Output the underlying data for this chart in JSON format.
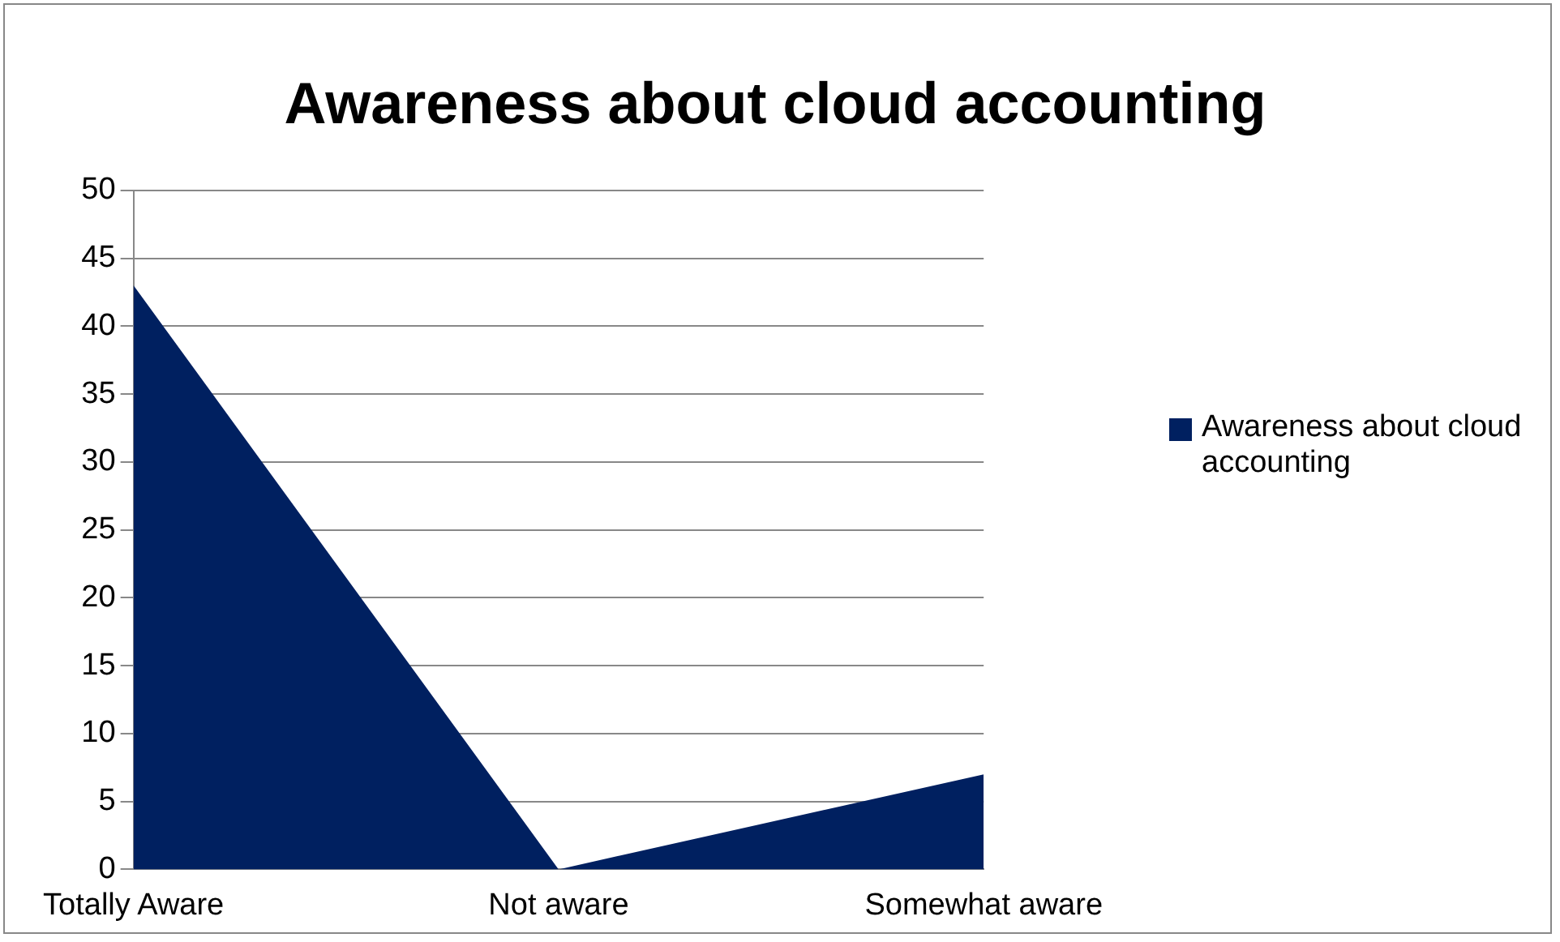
{
  "chart_data": {
    "type": "area",
    "title": "Awareness about cloud accounting",
    "categories": [
      "Totally Aware",
      "Not aware",
      "Somewhat aware"
    ],
    "series": [
      {
        "name": "Awareness about cloud accounting",
        "color": "#002060",
        "values": [
          43,
          0,
          7
        ]
      }
    ],
    "ylim": [
      0,
      50
    ],
    "yticks": [
      0,
      5,
      10,
      15,
      20,
      25,
      30,
      35,
      40,
      45,
      50
    ],
    "grid": "y",
    "legend": "right"
  }
}
